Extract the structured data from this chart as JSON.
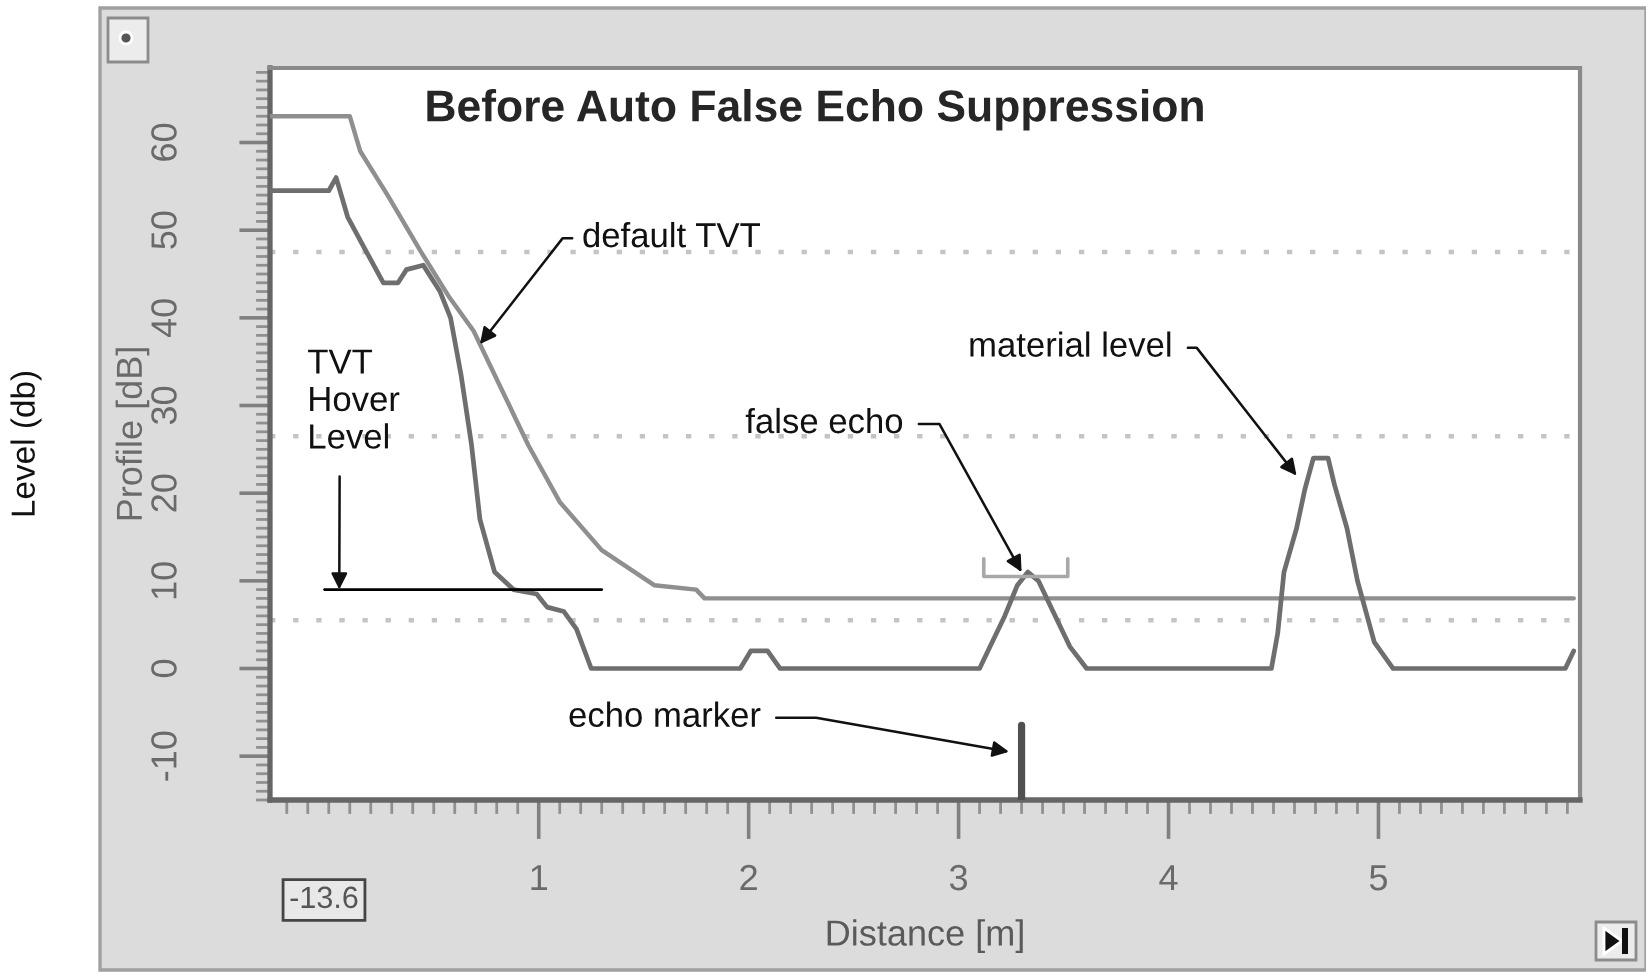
{
  "chart_data": {
    "type": "line",
    "title": "Before Auto False Echo Suppression",
    "xlabel": "Distance [m]",
    "ylabel": "Profile [dB]",
    "xlim": [
      -0.28,
      5.96
    ],
    "ylim": [
      -15,
      68.5
    ],
    "xticks": [
      1,
      2,
      3,
      4,
      5
    ],
    "yticks": [
      -10,
      0,
      10,
      20,
      30,
      40,
      50,
      60
    ],
    "grid": false,
    "series": [
      {
        "color": "#8f8f8f",
        "x": [
          -0.28,
          0.1,
          0.15,
          0.28,
          0.44,
          0.57,
          0.69,
          0.82,
          0.95,
          1.1,
          1.3,
          1.55,
          1.75,
          1.79,
          5.93
        ],
        "values": [
          63,
          63,
          59,
          54,
          47.5,
          42.5,
          38.5,
          32,
          25.5,
          19,
          13.5,
          9.5,
          9,
          8,
          8
        ]
      },
      {
        "color": "#6e6e6e",
        "x": [
          -0.28,
          0.0,
          0.035,
          0.09,
          0.18,
          0.26,
          0.33,
          0.37,
          0.45,
          0.53,
          0.58,
          0.63,
          0.68,
          0.72,
          0.79,
          0.88,
          0.99,
          1.04,
          1.12,
          1.18,
          1.25,
          1.96,
          2.01,
          2.09,
          2.15,
          3.1,
          3.15,
          3.22,
          3.28,
          3.33,
          3.38,
          3.45,
          3.53,
          3.61,
          4.49,
          4.52,
          4.55,
          4.61,
          4.65,
          4.69,
          4.76,
          4.79,
          4.85,
          4.9,
          4.98,
          5.07,
          5.89,
          5.93
        ],
        "values": [
          54.5,
          54.5,
          56,
          51.5,
          47.5,
          44,
          44,
          45.5,
          46,
          43,
          40,
          33.5,
          25.5,
          17,
          11,
          9,
          8.5,
          7,
          6.5,
          4.5,
          0,
          0,
          2,
          2,
          0,
          0,
          2.5,
          6,
          9.5,
          11,
          10,
          6.5,
          2.5,
          0,
          0,
          4,
          11,
          16,
          20.5,
          24,
          24,
          21,
          16,
          10,
          3,
          0,
          0,
          2
        ]
      },
      {
        "color": "#000000",
        "x": [
          -0.02,
          1.3
        ],
        "values": [
          9,
          9
        ]
      },
      {
        "color": "#a8a8a8",
        "x": [
          3.12,
          3.12,
          3.52,
          3.52
        ],
        "values": [
          12.5,
          10.5,
          10.5,
          12.5
        ]
      },
      {
        "color": "#505050",
        "x": [
          3.3,
          3.3
        ],
        "values": [
          -15,
          -6.5
        ]
      }
    ],
    "ref_lines": [
      {
        "axis": "y",
        "value": 47.5,
        "color": "#c4c4c4",
        "line_style": "dotted"
      },
      {
        "axis": "y",
        "value": 26.5,
        "color": "#c4c4c4",
        "line_style": "dotted"
      },
      {
        "axis": "y",
        "value": 5.5,
        "color": "#c4c4c4",
        "line_style": "dotted"
      }
    ],
    "annotations": [
      {
        "text": "default TVT",
        "x": 0.72,
        "y": 37
      },
      {
        "text": "TVT\nHover\nLevel",
        "x": 0.05,
        "y": 9
      },
      {
        "text": "false echo",
        "x": 3.3,
        "y": 11
      },
      {
        "text": "material level",
        "x": 4.61,
        "y": 22
      },
      {
        "text": "echo marker",
        "x": 3.24,
        "y": -9.5
      },
      "-13.6",
      "Level (db)"
    ]
  }
}
